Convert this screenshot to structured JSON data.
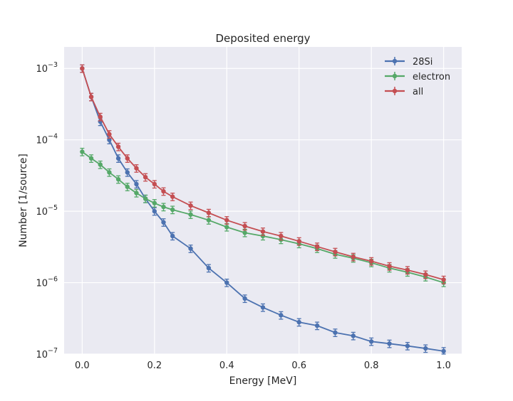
{
  "chart_data": {
    "type": "scatter",
    "title": "Deposited energy",
    "xlabel": "Energy [MeV]",
    "ylabel": "Number [1/source]",
    "xlim": [
      -0.05,
      1.05
    ],
    "ylim": [
      1e-07,
      0.002
    ],
    "yscale": "log",
    "grid": true,
    "legend_position": "top-right",
    "x_ticks": [
      {
        "value": 0.0,
        "label": "0.0"
      },
      {
        "value": 0.2,
        "label": "0.2"
      },
      {
        "value": 0.4,
        "label": "0.4"
      },
      {
        "value": 0.6,
        "label": "0.6"
      },
      {
        "value": 0.8,
        "label": "0.8"
      },
      {
        "value": 1.0,
        "label": "1.0"
      }
    ],
    "y_ticks": [
      {
        "value": 1e-07,
        "base": "10",
        "exp": "−7"
      },
      {
        "value": 1e-06,
        "base": "10",
        "exp": "−6"
      },
      {
        "value": 1e-05,
        "base": "10",
        "exp": "−5"
      },
      {
        "value": 0.0001,
        "base": "10",
        "exp": "−4"
      },
      {
        "value": 0.001,
        "base": "10",
        "exp": "−3"
      }
    ],
    "x": [
      0.0,
      0.025,
      0.05,
      0.075,
      0.1,
      0.125,
      0.15,
      0.175,
      0.2,
      0.225,
      0.25,
      0.3,
      0.35,
      0.4,
      0.45,
      0.5,
      0.55,
      0.6,
      0.65,
      0.7,
      0.75,
      0.8,
      0.85,
      0.9,
      0.95,
      1.0
    ],
    "series": [
      {
        "name": "28Si",
        "color": "#4c72b0",
        "values": [
          0.001,
          0.0004,
          0.00018,
          0.0001,
          5.5e-05,
          3.5e-05,
          2.4e-05,
          1.5e-05,
          1e-05,
          7e-06,
          4.5e-06,
          3e-06,
          1.6e-06,
          1e-06,
          6e-07,
          4.5e-07,
          3.5e-07,
          2.8e-07,
          2.5e-07,
          2e-07,
          1.8e-07,
          1.5e-07,
          1.4e-07,
          1.3e-07,
          1.2e-07,
          1.1e-07
        ]
      },
      {
        "name": "electron",
        "color": "#55a868",
        "values": [
          6.8e-05,
          5.5e-05,
          4.5e-05,
          3.5e-05,
          2.8e-05,
          2.2e-05,
          1.8e-05,
          1.5e-05,
          1.3e-05,
          1.15e-05,
          1.05e-05,
          9e-06,
          7.5e-06,
          6e-06,
          5e-06,
          4.5e-06,
          4e-06,
          3.5e-06,
          3e-06,
          2.5e-06,
          2.2e-06,
          1.9e-06,
          1.6e-06,
          1.4e-06,
          1.2e-06,
          1e-06
        ]
      },
      {
        "name": "all",
        "color": "#c44e52",
        "values": [
          0.001,
          0.0004,
          0.00021,
          0.00012,
          8e-05,
          5.5e-05,
          4e-05,
          3e-05,
          2.4e-05,
          1.9e-05,
          1.6e-05,
          1.2e-05,
          9.5e-06,
          7.5e-06,
          6.2e-06,
          5.2e-06,
          4.5e-06,
          3.8e-06,
          3.2e-06,
          2.7e-06,
          2.3e-06,
          2e-06,
          1.7e-06,
          1.5e-06,
          1.3e-06,
          1.1e-06
        ]
      }
    ]
  }
}
